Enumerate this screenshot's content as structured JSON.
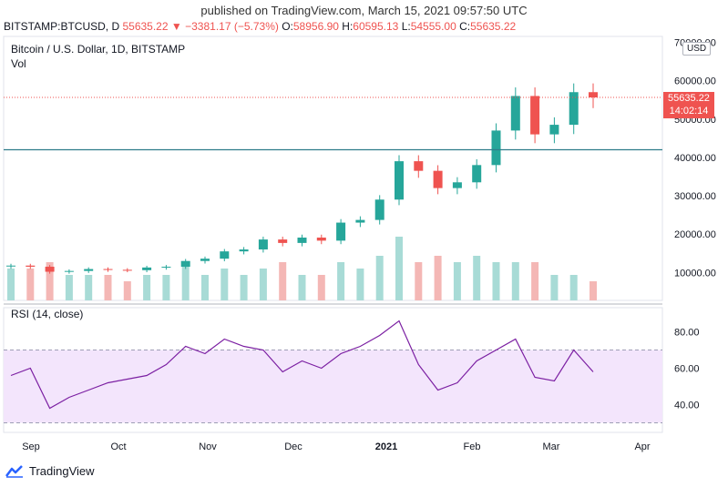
{
  "header": {
    "published": "published on TradingView.com, March 15, 2021 09:57:50 UTC"
  },
  "ticker": {
    "symbol": "BITSTAMP:BTCUSD, D",
    "last": "55635.22",
    "change_arrow": "▼",
    "change": "−3381.17 (−5.73%)",
    "o_label": "O:",
    "o": "58956.90",
    "h_label": "H:",
    "h": "60595.13",
    "l_label": "L:",
    "l": "54555.00",
    "c_label": "C:",
    "c": "55635.22"
  },
  "price_pane": {
    "title": "Bitcoin / U.S. Dollar, 1D, BITSTAMP",
    "vol_label": "Vol",
    "currency_button": "USD",
    "last_price_tag": "55635.22",
    "countdown_tag": "14:02:14",
    "y_ticks": [
      "70000.00",
      "60000.00",
      "50000.00",
      "40000.00",
      "30000.00",
      "20000.00",
      "10000.00"
    ]
  },
  "rsi_pane": {
    "title": "RSI (14, close)",
    "y_ticks": [
      "80.00",
      "60.00",
      "40.00"
    ]
  },
  "x_axis": {
    "labels": [
      "Sep",
      "Oct",
      "Nov",
      "Dec",
      "2021",
      "Feb",
      "Mar",
      "Apr"
    ]
  },
  "footer": {
    "brand": "TradingView"
  },
  "colors": {
    "up": "#26a69a",
    "down": "#ef5350",
    "rsi_line": "#7b1fa2",
    "rsi_band": "#f3e5fc",
    "horizontal_level": "#2e7d8a"
  },
  "chart_data": [
    {
      "type": "candlestick",
      "title": "Bitcoin / U.S. Dollar, 1D, BITSTAMP",
      "ylim": [
        0,
        70000
      ],
      "horizontal_line": 42000,
      "last_price": 55635.22,
      "x": [
        "Aug 20",
        "Aug 27",
        "Sep 3",
        "Sep 10",
        "Sep 17",
        "Sep 24",
        "Oct 1",
        "Oct 8",
        "Oct 15",
        "Oct 22",
        "Oct 29",
        "Nov 5",
        "Nov 12",
        "Nov 19",
        "Nov 26",
        "Dec 3",
        "Dec 10",
        "Dec 17",
        "Dec 24",
        "Dec 31",
        "Jan 7",
        "Jan 14",
        "Jan 21",
        "Jan 28",
        "Feb 4",
        "Feb 11",
        "Feb 18",
        "Feb 25",
        "Mar 4",
        "Mar 11",
        "Mar 15"
      ],
      "close": [
        11800,
        11500,
        10200,
        10400,
        10900,
        10700,
        10600,
        11300,
        11500,
        13000,
        13600,
        15500,
        16000,
        18600,
        17700,
        19100,
        18300,
        23000,
        23700,
        29000,
        39000,
        36500,
        32000,
        33500,
        38000,
        47000,
        56000,
        46000,
        48500,
        57000,
        55635
      ],
      "volume": [
        0.5,
        0.5,
        0.6,
        0.4,
        0.4,
        0.4,
        0.3,
        0.4,
        0.4,
        0.6,
        0.4,
        0.5,
        0.4,
        0.5,
        0.6,
        0.4,
        0.4,
        0.6,
        0.5,
        0.7,
        1.0,
        0.6,
        0.7,
        0.6,
        0.7,
        0.6,
        0.6,
        0.6,
        0.4,
        0.4,
        0.3
      ]
    },
    {
      "type": "line",
      "title": "RSI (14, close)",
      "ylim": [
        25,
        95
      ],
      "bands": [
        70,
        30
      ],
      "x": [
        "Aug 20",
        "Aug 27",
        "Sep 3",
        "Sep 10",
        "Sep 17",
        "Sep 24",
        "Oct 1",
        "Oct 8",
        "Oct 15",
        "Oct 22",
        "Oct 29",
        "Nov 5",
        "Nov 12",
        "Nov 19",
        "Nov 26",
        "Dec 3",
        "Dec 10",
        "Dec 17",
        "Dec 24",
        "Dec 31",
        "Jan 7",
        "Jan 14",
        "Jan 21",
        "Jan 28",
        "Feb 4",
        "Feb 11",
        "Feb 18",
        "Feb 25",
        "Mar 4",
        "Mar 11",
        "Mar 15"
      ],
      "values": [
        56,
        60,
        38,
        44,
        48,
        52,
        54,
        56,
        62,
        72,
        68,
        76,
        72,
        70,
        58,
        64,
        60,
        68,
        72,
        78,
        86,
        62,
        48,
        52,
        64,
        70,
        76,
        55,
        53,
        70,
        58
      ]
    }
  ]
}
